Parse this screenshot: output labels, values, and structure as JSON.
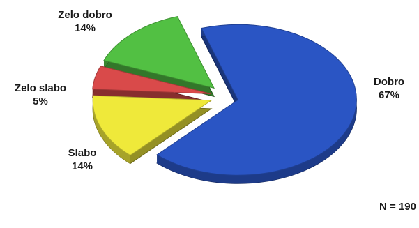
{
  "chart_data": {
    "type": "pie",
    "title": "",
    "slices": [
      {
        "label": "Dobro",
        "percent_label": "67%",
        "value": 67,
        "color": "#2a55c4"
      },
      {
        "label": "Slabo",
        "percent_label": "14%",
        "value": 14,
        "color": "#efe93a"
      },
      {
        "label": "Zelo slabo",
        "percent_label": "5%",
        "value": 5,
        "color": "#d94a4a"
      },
      {
        "label": "Zelo dobro",
        "percent_label": "14%",
        "value": 14,
        "color": "#52c043"
      }
    ],
    "exploded": "Dobro",
    "style": "3d"
  },
  "note": "N = 190"
}
